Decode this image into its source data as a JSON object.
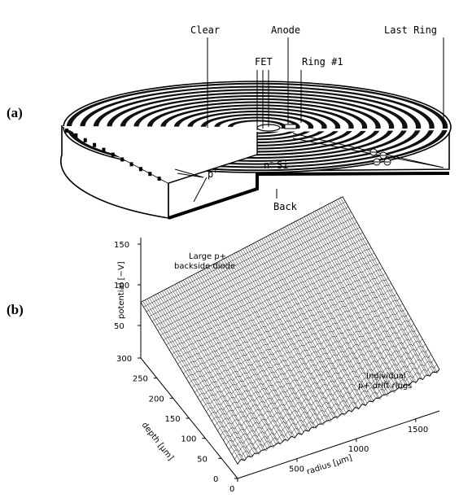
{
  "panel_a": {
    "label": "(a)",
    "labels": {
      "clear": "Clear",
      "anode": "Anode",
      "last_ring": "Last Ring",
      "fet": "FET",
      "ring1": "Ring #1",
      "p_plus": "p",
      "p_plus_sup": "+",
      "n_si_n": "n",
      "n_si_sup": "−",
      "n_si_si": "Si",
      "back": "Back",
      "electron": "⊖"
    },
    "ring_count": 13
  },
  "panel_b": {
    "label": "(b)",
    "annotations": {
      "backside_line1": "Large p+",
      "backside_line2": "backside diode",
      "rings_line1": "Individual",
      "rings_line2": "p+ drift rings"
    },
    "axes": {
      "potential_label": "potential [−V]",
      "potential_ticks": [
        "150",
        "100",
        "50"
      ],
      "depth_label": "depth [μm]",
      "depth_ticks": [
        "300",
        "250",
        "200",
        "150",
        "100",
        "50",
        "0"
      ],
      "radius_label": "radius [μm]",
      "radius_ticks": [
        "0",
        "500",
        "1000",
        "1500"
      ]
    },
    "surface_grid": {
      "lines_along_radius": 34,
      "lines_along_depth": 95
    }
  }
}
